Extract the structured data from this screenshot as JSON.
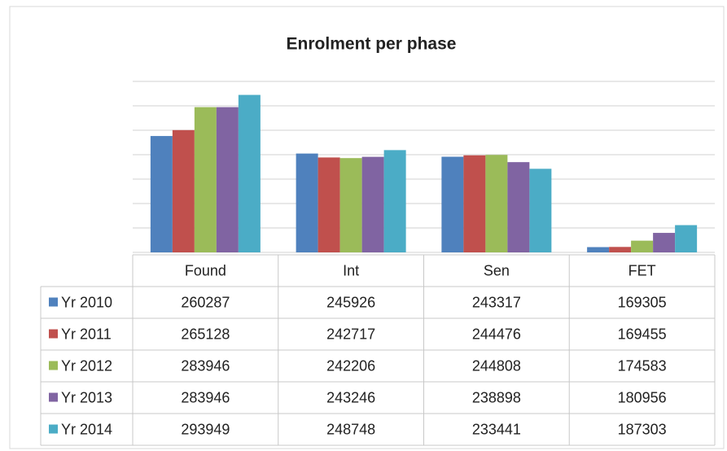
{
  "chart_data": {
    "type": "bar",
    "title": "Enrolment per phase",
    "categories": [
      "Found",
      "Int",
      "Sen",
      "FET"
    ],
    "series": [
      {
        "name": "Yr 2010",
        "color": "#4f81bd",
        "values": [
          260287,
          245926,
          243317,
          169305
        ]
      },
      {
        "name": "Yr 2011",
        "color": "#c0504d",
        "values": [
          265128,
          242717,
          244476,
          169455
        ]
      },
      {
        "name": "Yr 2012",
        "color": "#9bbb59",
        "values": [
          283946,
          242206,
          244808,
          174583
        ]
      },
      {
        "name": "Yr 2013",
        "color": "#8064a2",
        "values": [
          283946,
          243246,
          238898,
          180956
        ]
      },
      {
        "name": "Yr 2014",
        "color": "#4bacc6",
        "values": [
          293949,
          248748,
          233441,
          187303
        ]
      }
    ],
    "ylim": [
      165000,
      305000
    ],
    "yticks": [
      165000,
      185000,
      205000,
      225000,
      245000,
      265000,
      285000,
      305000
    ],
    "grid": true
  }
}
